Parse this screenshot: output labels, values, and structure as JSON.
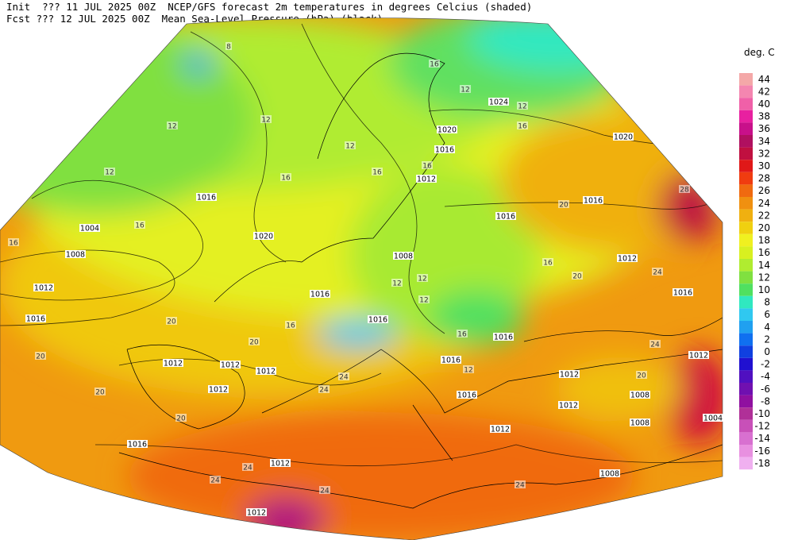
{
  "header": {
    "line1": "Init  ??? 11 JUL 2025 00Z  NCEP/GFS forecast 2m temperatures in degrees Celcius (shaded)",
    "line2": "Fcst ??? 12 JUL 2025 00Z  Mean Sea-Level Pressure (hPa) (black)."
  },
  "colorbar": {
    "title": "deg. C",
    "levels": [
      44,
      42,
      40,
      38,
      36,
      34,
      32,
      30,
      28,
      26,
      24,
      22,
      20,
      18,
      16,
      14,
      12,
      10,
      8,
      6,
      4,
      2,
      0,
      -2,
      -4,
      -6,
      -8,
      -10,
      -12,
      -14,
      -16,
      -18
    ],
    "colors": [
      "#f4a8a8",
      "#f486b0",
      "#f060a8",
      "#e820a0",
      "#c8108a",
      "#b01060",
      "#c01040",
      "#e01818",
      "#f03c10",
      "#f06a10",
      "#f09010",
      "#f0b010",
      "#f0d010",
      "#f0f020",
      "#d8f020",
      "#b0ec30",
      "#80e040",
      "#50e060",
      "#30e8c0",
      "#30c8f0",
      "#20a0f0",
      "#1070f0",
      "#1040e0",
      "#2010d0",
      "#5010c0",
      "#7010b0",
      "#9010a0",
      "#b03098",
      "#c850b8",
      "#d870d0",
      "#e890e0",
      "#f0b0f0"
    ]
  },
  "map": {
    "pressure_labels": [
      "1004",
      "1008",
      "1012",
      "1016",
      "1016",
      "1020",
      "1016",
      "1008",
      "1012",
      "1016",
      "1020",
      "1024",
      "1020",
      "1016",
      "1016",
      "1012",
      "1016",
      "1012",
      "1016",
      "1016",
      "1016",
      "1012",
      "1012",
      "1012",
      "1012",
      "1016",
      "1012",
      "1012",
      "1016",
      "1012",
      "1012",
      "1008",
      "1008",
      "1012",
      "1008",
      "1004"
    ],
    "temperature_labels": [
      "8",
      "12",
      "12",
      "12",
      "16",
      "16",
      "12",
      "16",
      "16",
      "16",
      "16",
      "12",
      "12",
      "16",
      "20",
      "16",
      "20",
      "24",
      "20",
      "20",
      "16",
      "20",
      "20",
      "20",
      "24",
      "24",
      "24",
      "24",
      "24",
      "24",
      "24",
      "20",
      "28",
      "12",
      "12",
      "12",
      "16",
      "12"
    ]
  }
}
